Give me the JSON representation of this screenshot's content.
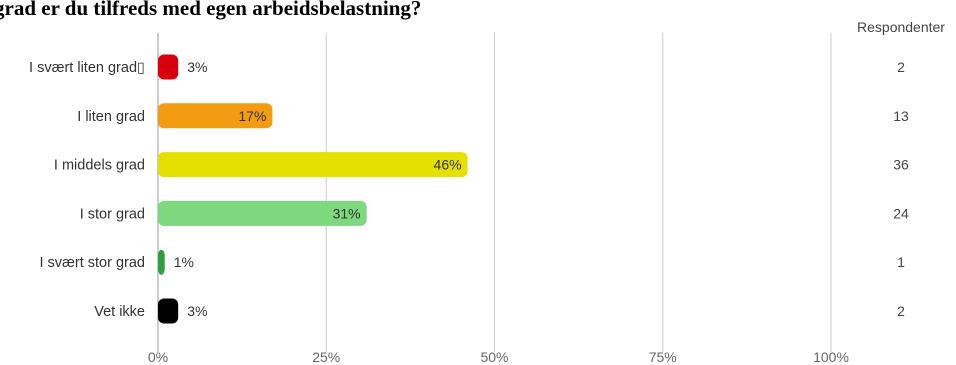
{
  "chart_data": {
    "type": "bar",
    "orientation": "horizontal",
    "title": "grad er du tilfreds med egen arbeidsbelastning?",
    "categories": [
      "I svært liten grad▯",
      "I liten grad",
      "I middels grad",
      "I stor grad",
      "I svært stor grad",
      "Vet ikke"
    ],
    "values": [
      3,
      17,
      46,
      31,
      1,
      3
    ],
    "value_labels": [
      "3%",
      "17%",
      "46%",
      "31%",
      "1%",
      "3%"
    ],
    "respondents": [
      2,
      13,
      36,
      24,
      1,
      2
    ],
    "respondents_header": "Respondenter",
    "colors": [
      "#d8000c",
      "#f39c12",
      "#e5e000",
      "#7ed87e",
      "#2e9e3e",
      "#000000"
    ],
    "x_ticks": [
      0,
      25,
      50,
      75,
      100
    ],
    "x_tick_labels": [
      "0%",
      "25%",
      "50%",
      "75%",
      "100%"
    ],
    "xlim": [
      0,
      100
    ],
    "grid": true,
    "legend": "none"
  }
}
